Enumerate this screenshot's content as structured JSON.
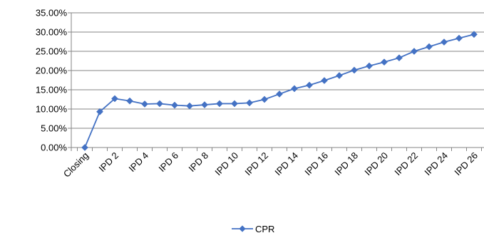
{
  "chart_data": {
    "type": "line",
    "categories": [
      "Closing",
      "IPD 1",
      "IPD 2",
      "IPD 3",
      "IPD 4",
      "IPD 5",
      "IPD 6",
      "IPD 7",
      "IPD 8",
      "IPD 9",
      "IPD 10",
      "IPD 11",
      "IPD 12",
      "IPD 13",
      "IPD 14",
      "IPD 15",
      "IPD 16",
      "IPD 17",
      "IPD 18",
      "IPD 19",
      "IPD 20",
      "IPD 21",
      "IPD 22",
      "IPD 23",
      "IPD 24",
      "IPD 25",
      "IPD 26"
    ],
    "visible_x_tick_labels": [
      "Closing",
      "IPD 2",
      "IPD 4",
      "IPD 6",
      "IPD 8",
      "IPD 10",
      "IPD 12",
      "IPD 14",
      "IPD 16",
      "IPD 18",
      "IPD 20",
      "IPD 22",
      "IPD 24",
      "IPD 26"
    ],
    "series": [
      {
        "name": "CPR",
        "color": "#4472C4",
        "marker": "diamond",
        "values": [
          0.0,
          9.3,
          12.7,
          12.1,
          11.3,
          11.4,
          11.0,
          10.8,
          11.1,
          11.4,
          11.4,
          11.6,
          12.5,
          13.9,
          15.3,
          16.2,
          17.4,
          18.7,
          20.1,
          21.2,
          22.2,
          23.3,
          25.0,
          26.2,
          27.4,
          28.4,
          29.4
        ]
      }
    ],
    "y_tick_labels": [
      "0.00%",
      "5.00%",
      "10.00%",
      "15.00%",
      "20.00%",
      "25.00%",
      "30.00%",
      "35.00%"
    ],
    "ylim": [
      0,
      35
    ],
    "y_unit": "percent",
    "gridlines": true,
    "legend_position": "bottom",
    "title": "",
    "xlabel": "",
    "ylabel": ""
  }
}
